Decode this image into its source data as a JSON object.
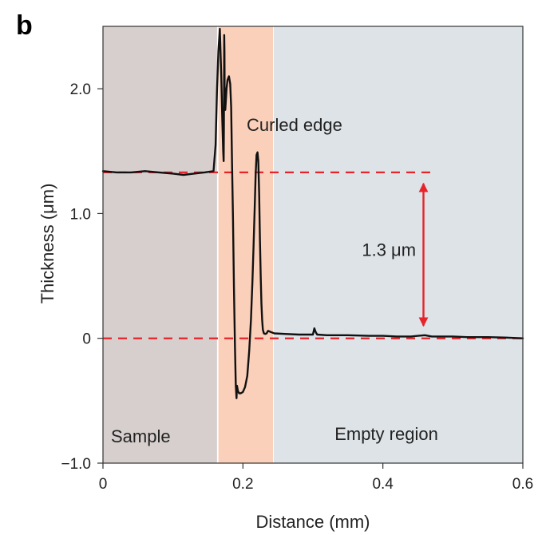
{
  "panel_label": "b",
  "chart_data": {
    "type": "line",
    "title": "",
    "xlabel": "Distance (mm)",
    "ylabel": "Thickness (μm)",
    "xlim": [
      0,
      0.6
    ],
    "ylim": [
      -1.0,
      2.5
    ],
    "x_ticks": [
      0,
      0.2,
      0.4,
      0.6
    ],
    "x_tick_labels": [
      "0",
      "0.2",
      "0.4",
      "0.6"
    ],
    "y_ticks": [
      -1.0,
      0,
      1.0,
      2.0
    ],
    "y_tick_labels": [
      "−1.0",
      "0",
      "1.0",
      "2.0"
    ],
    "grid": false,
    "regions": [
      {
        "label": "Sample",
        "x_start": 0,
        "x_end": 0.163,
        "color": "#d6cfcd"
      },
      {
        "label": "Curled edge",
        "x_start": 0.165,
        "x_end": 0.243,
        "color": "#fbd0bb"
      },
      {
        "label": "Empty region",
        "x_start": 0.244,
        "x_end": 0.6,
        "color": "#dde3e7"
      }
    ],
    "reference_lines": [
      {
        "y": 1.33,
        "x_start": 0,
        "x_end": 0.476,
        "color": "#e8232a",
        "style": "dashed"
      },
      {
        "y": 0.0,
        "x_start": 0,
        "x_end": 0.6,
        "color": "#e8232a",
        "style": "dashed"
      }
    ],
    "double_arrow": {
      "x": 0.458,
      "y_from": 0.1,
      "y_to": 1.24,
      "color": "#e8232a"
    },
    "annotations": [
      {
        "text": "1.3 μm",
        "x": 0.37,
        "y": 0.66
      }
    ],
    "series": [
      {
        "color": "#111111",
        "x": [
          0,
          0.02,
          0.04,
          0.06,
          0.08,
          0.1,
          0.115,
          0.13,
          0.145,
          0.158,
          0.161,
          0.163,
          0.165,
          0.167,
          0.169,
          0.1705,
          0.1718,
          0.1725,
          0.1728,
          0.173,
          0.1733,
          0.1736,
          0.1738,
          0.1742,
          0.1748,
          0.1756,
          0.1766,
          0.178,
          0.18,
          0.1818,
          0.1832,
          0.1845,
          0.1858,
          0.1872,
          0.1885,
          0.1898,
          0.1908,
          0.1915,
          0.1928,
          0.1945,
          0.197,
          0.2,
          0.203,
          0.2062,
          0.209,
          0.2115,
          0.2135,
          0.2152,
          0.2168,
          0.2182,
          0.2195,
          0.2208,
          0.222,
          0.2232,
          0.2243,
          0.2254,
          0.2264,
          0.2274,
          0.2285,
          0.23,
          0.2318,
          0.2338,
          0.236,
          0.24,
          0.245,
          0.26,
          0.28,
          0.3,
          0.302,
          0.304,
          0.306,
          0.32,
          0.35,
          0.38,
          0.4,
          0.42,
          0.44,
          0.45,
          0.46,
          0.47,
          0.5,
          0.52,
          0.55,
          0.58,
          0.6
        ],
        "y": [
          1.34,
          1.33,
          1.33,
          1.34,
          1.33,
          1.32,
          1.31,
          1.32,
          1.33,
          1.34,
          1.55,
          2.0,
          2.3,
          2.48,
          2.1,
          1.75,
          1.5,
          1.42,
          1.7,
          2.1,
          2.43,
          2.3,
          2.0,
          1.85,
          1.83,
          1.9,
          2.0,
          2.07,
          2.1,
          2.04,
          1.85,
          1.4,
          0.95,
          0.4,
          -0.05,
          -0.38,
          -0.48,
          -0.38,
          -0.42,
          -0.44,
          -0.44,
          -0.43,
          -0.39,
          -0.3,
          -0.1,
          0.15,
          0.45,
          0.75,
          1.05,
          1.32,
          1.47,
          1.49,
          1.42,
          1.15,
          0.8,
          0.5,
          0.28,
          0.15,
          0.07,
          0.04,
          0.035,
          0.04,
          0.06,
          0.05,
          0.04,
          0.035,
          0.03,
          0.03,
          0.08,
          0.05,
          0.03,
          0.025,
          0.025,
          0.02,
          0.02,
          0.015,
          0.015,
          0.02,
          0.025,
          0.015,
          0.015,
          0.01,
          0.01,
          0.005,
          0.0
        ]
      }
    ]
  }
}
